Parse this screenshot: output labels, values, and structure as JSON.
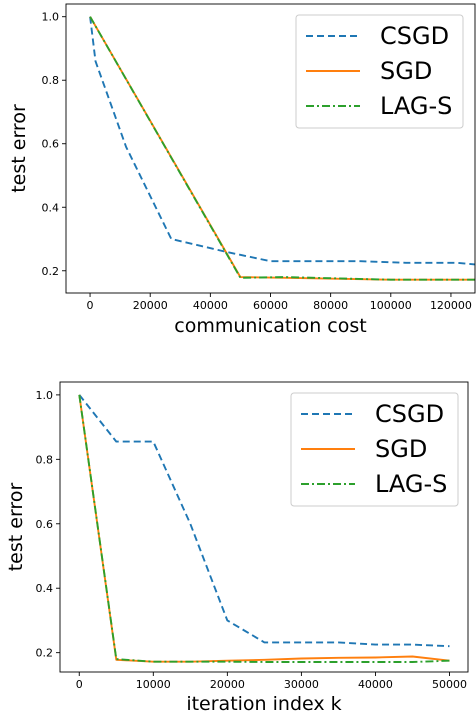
{
  "chart_data": [
    {
      "type": "line",
      "xlabel": "communication cost",
      "ylabel": "test error",
      "xlim": [
        -8000,
        128000
      ],
      "ylim": [
        0.13,
        1.04
      ],
      "xticks": [
        0,
        20000,
        40000,
        60000,
        80000,
        100000,
        120000
      ],
      "yticks": [
        0.2,
        0.4,
        0.6,
        0.8,
        1.0
      ],
      "xtick_labels": [
        "0",
        "20000",
        "40000",
        "60000",
        "80000",
        "100000",
        "120000"
      ],
      "ytick_labels": [
        "0.2",
        "0.4",
        "0.6",
        "0.8",
        "1.0"
      ],
      "grid": false,
      "legend_position": "upper right",
      "series": [
        {
          "name": "CSGD",
          "color": "#1f77b4",
          "dash": "dashed",
          "points": [
            [
              0,
              1.0
            ],
            [
              1800,
              0.86
            ],
            [
              12000,
              0.59
            ],
            [
              27000,
              0.3
            ],
            [
              45000,
              0.26
            ],
            [
              60000,
              0.23
            ],
            [
              90000,
              0.23
            ],
            [
              105000,
              0.225
            ],
            [
              122000,
              0.225
            ],
            [
              128000,
              0.22
            ]
          ]
        },
        {
          "name": "SGD",
          "color": "#ff7f0e",
          "dash": "solid",
          "points": [
            [
              0,
              1.0
            ],
            [
              50000,
              0.18
            ],
            [
              65000,
              0.178
            ],
            [
              100000,
              0.172
            ],
            [
              128000,
              0.172
            ]
          ]
        },
        {
          "name": "LAG-S",
          "color": "#2ca02c",
          "dash": "dashdot",
          "points": [
            [
              0,
              1.0
            ],
            [
              50000,
              0.178
            ],
            [
              65000,
              0.18
            ],
            [
              100000,
              0.172
            ],
            [
              128000,
              0.172
            ]
          ]
        }
      ]
    },
    {
      "type": "line",
      "xlabel": "iteration index k",
      "ylabel": "test error",
      "xlim": [
        -2600,
        52500
      ],
      "ylim": [
        0.14,
        1.04
      ],
      "xticks": [
        0,
        10000,
        20000,
        30000,
        40000,
        50000
      ],
      "yticks": [
        0.2,
        0.4,
        0.6,
        0.8,
        1.0
      ],
      "xtick_labels": [
        "0",
        "10000",
        "20000",
        "30000",
        "40000",
        "50000"
      ],
      "ytick_labels": [
        "0.2",
        "0.4",
        "0.6",
        "0.8",
        "1.0"
      ],
      "grid": false,
      "legend_position": "upper right",
      "series": [
        {
          "name": "CSGD",
          "color": "#1f77b4",
          "dash": "dashed",
          "points": [
            [
              0,
              1.0
            ],
            [
              5000,
              0.855
            ],
            [
              10000,
              0.855
            ],
            [
              15000,
              0.6
            ],
            [
              20000,
              0.3
            ],
            [
              25000,
              0.232
            ],
            [
              30000,
              0.232
            ],
            [
              35000,
              0.232
            ],
            [
              40000,
              0.225
            ],
            [
              45000,
              0.225
            ],
            [
              50000,
              0.22
            ]
          ]
        },
        {
          "name": "SGD",
          "color": "#ff7f0e",
          "dash": "solid",
          "points": [
            [
              0,
              1.0
            ],
            [
              5000,
              0.178
            ],
            [
              10000,
              0.172
            ],
            [
              15000,
              0.172
            ],
            [
              20000,
              0.175
            ],
            [
              25000,
              0.178
            ],
            [
              30000,
              0.182
            ],
            [
              35000,
              0.184
            ],
            [
              40000,
              0.185
            ],
            [
              45000,
              0.188
            ],
            [
              50000,
              0.175
            ]
          ]
        },
        {
          "name": "LAG-S",
          "color": "#2ca02c",
          "dash": "dashdot",
          "points": [
            [
              0,
              1.0
            ],
            [
              5000,
              0.18
            ],
            [
              10000,
              0.172
            ],
            [
              15000,
              0.172
            ],
            [
              20000,
              0.172
            ],
            [
              25000,
              0.171
            ],
            [
              30000,
              0.171
            ],
            [
              35000,
              0.171
            ],
            [
              40000,
              0.171
            ],
            [
              45000,
              0.171
            ],
            [
              50000,
              0.175
            ]
          ]
        }
      ]
    }
  ]
}
